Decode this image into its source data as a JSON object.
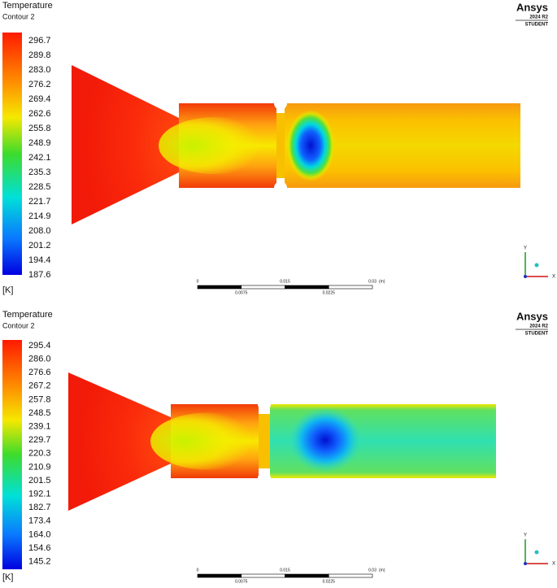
{
  "panels": [
    {
      "title": "Temperature",
      "subtitle": "Contour 2",
      "legend_labels": [
        "296.7",
        "289.8",
        "283.0",
        "276.2",
        "269.4",
        "262.6",
        "255.8",
        "248.9",
        "242.1",
        "235.3",
        "228.5",
        "221.7",
        "214.9",
        "208.0",
        "201.2",
        "194.4",
        "187.6"
      ],
      "unit": "[K]",
      "brand": "Ansys",
      "version": "2024 R2",
      "license": "STUDENT",
      "scale_labels_top": [
        "0",
        "0.015",
        "0.03"
      ],
      "scale_unit": "(m)",
      "scale_labels_bottom": [
        "0.0075",
        "0.0225"
      ],
      "axes": [
        "Y",
        "X"
      ]
    },
    {
      "title": "Temperature",
      "subtitle": "Contour 2",
      "legend_labels": [
        "295.4",
        "286.0",
        "276.6",
        "267.2",
        "257.8",
        "248.5",
        "239.1",
        "229.7",
        "220.3",
        "210.9",
        "201.5",
        "192.1",
        "182.7",
        "173.4",
        "164.0",
        "154.6",
        "145.2"
      ],
      "unit": "[K]",
      "brand": "Ansys",
      "version": "2024 R2",
      "license": "STUDENT",
      "scale_labels_top": [
        "0",
        "0.015",
        "0.03"
      ],
      "scale_unit": "(m)",
      "scale_labels_bottom": [
        "0.0075",
        "0.0225"
      ],
      "axes": [
        "Y",
        "X"
      ]
    }
  ]
}
